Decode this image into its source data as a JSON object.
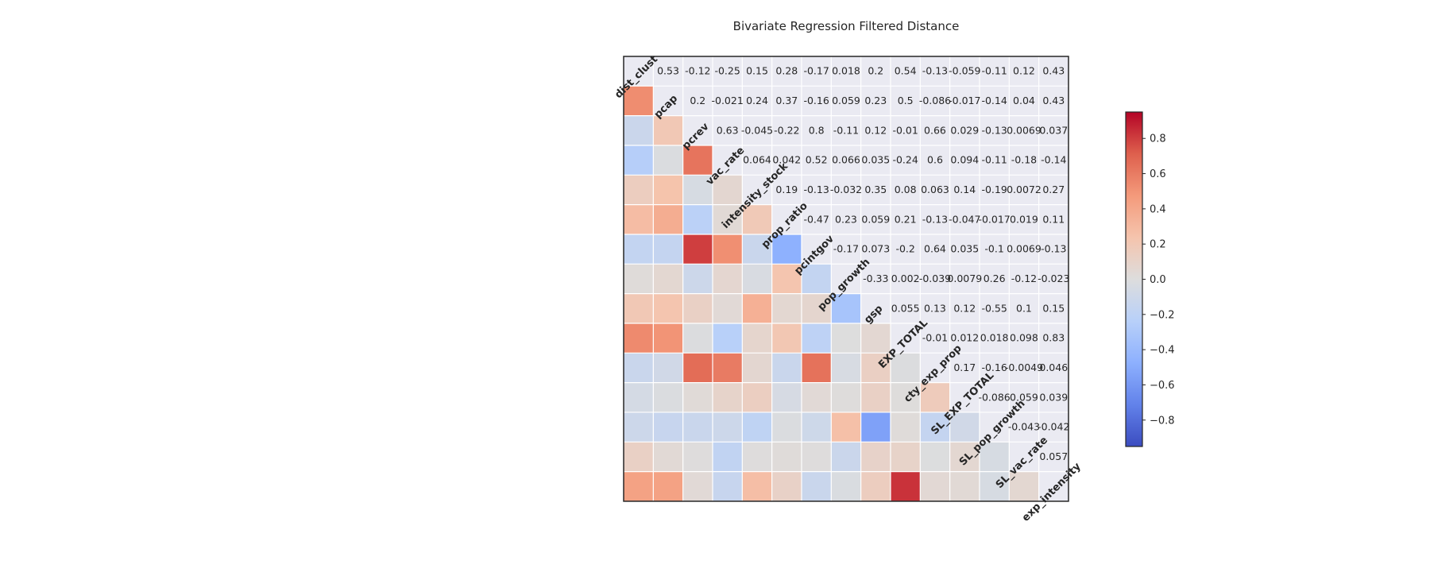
{
  "chart_data": {
    "type": "heatmap",
    "title": "Bivariate Regression Filtered Distance",
    "variables": [
      "dist_clust",
      "pcap",
      "pcrev",
      "vac_rate",
      "intensity_stock",
      "prop_ratio",
      "pcintgov",
      "pop_growth",
      "gsp",
      "EXP_TOTAL",
      "cty_exp_prop",
      "SL_EXP_TOTAL",
      "SL_pop_growth",
      "SL_vac_rate",
      "exp_intensity"
    ],
    "upper_labels": [
      [
        "",
        "0.53",
        "-0.12",
        "-0.25",
        "0.15",
        "0.28",
        "-0.17",
        "0.018",
        "0.2",
        "0.54",
        "-0.13",
        "-0.059",
        "-0.11",
        "0.12",
        "0.43"
      ],
      [
        "",
        "",
        "0.2",
        "-0.021",
        "0.24",
        "0.37",
        "-0.16",
        "0.059",
        "0.23",
        "0.5",
        "-0.086",
        "-0.017",
        "-0.14",
        "0.04",
        "0.43"
      ],
      [
        "",
        "",
        "",
        "0.63",
        "-0.045",
        "-0.22",
        "0.8",
        "-0.11",
        "0.12",
        "-0.01",
        "0.66",
        "0.029",
        "-0.13",
        "0.0069",
        "0.037"
      ],
      [
        "",
        "",
        "",
        "",
        "0.064",
        "0.042",
        "0.52",
        "0.066",
        "0.035",
        "-0.24",
        "0.6",
        "0.094",
        "-0.11",
        "-0.18",
        "-0.14"
      ],
      [
        "",
        "",
        "",
        "",
        "",
        "0.19",
        "-0.13",
        "-0.032",
        "0.35",
        "0.08",
        "0.063",
        "0.14",
        "-0.19",
        "0.0072",
        "0.27"
      ],
      [
        "",
        "",
        "",
        "",
        "",
        "",
        "-0.47",
        "0.23",
        "0.059",
        "0.21",
        "-0.13",
        "-0.047",
        "-0.017",
        "0.019",
        "0.11"
      ],
      [
        "",
        "",
        "",
        "",
        "",
        "",
        "",
        "-0.17",
        "0.073",
        "-0.2",
        "0.64",
        "0.035",
        "-0.1",
        "0.0069",
        "-0.13"
      ],
      [
        "",
        "",
        "",
        "",
        "",
        "",
        "",
        "",
        "-0.33",
        "0.002",
        "-0.039",
        "0.0079",
        "0.26",
        "-0.12",
        "-0.023"
      ],
      [
        "",
        "",
        "",
        "",
        "",
        "",
        "",
        "",
        "",
        "0.055",
        "0.13",
        "0.12",
        "-0.55",
        "0.1",
        "0.15"
      ],
      [
        "",
        "",
        "",
        "",
        "",
        "",
        "",
        "",
        "",
        "",
        "-0.01",
        "0.012",
        "0.018",
        "0.098",
        "0.83"
      ],
      [
        "",
        "",
        "",
        "",
        "",
        "",
        "",
        "",
        "",
        "",
        "",
        "0.17",
        "-0.16",
        "-0.0049",
        "0.046"
      ],
      [
        "",
        "",
        "",
        "",
        "",
        "",
        "",
        "",
        "",
        "",
        "",
        "",
        "-0.086",
        "0.059",
        "0.039"
      ],
      [
        "",
        "",
        "",
        "",
        "",
        "",
        "",
        "",
        "",
        "",
        "",
        "",
        "",
        "-0.043",
        "-0.042"
      ],
      [
        "",
        "",
        "",
        "",
        "",
        "",
        "",
        "",
        "",
        "",
        "",
        "",
        "",
        "",
        "0.057"
      ],
      [
        "",
        "",
        "",
        "",
        "",
        "",
        "",
        "",
        "",
        "",
        "",
        "",
        "",
        "",
        ""
      ]
    ],
    "colormap": "coolwarm",
    "vmin": -0.95,
    "vmax": 0.95,
    "colorbar_ticks": [
      "0.8",
      "0.6",
      "0.4",
      "0.2",
      "0.0",
      "−0.2",
      "−0.4",
      "−0.6",
      "−0.8"
    ],
    "colorbar_tick_values": [
      0.8,
      0.6,
      0.4,
      0.2,
      0.0,
      -0.2,
      -0.4,
      -0.6,
      -0.8
    ],
    "lower_triangle": "colored cells mirror upper-triangle values; diagonal shows variable names",
    "grid": true
  }
}
